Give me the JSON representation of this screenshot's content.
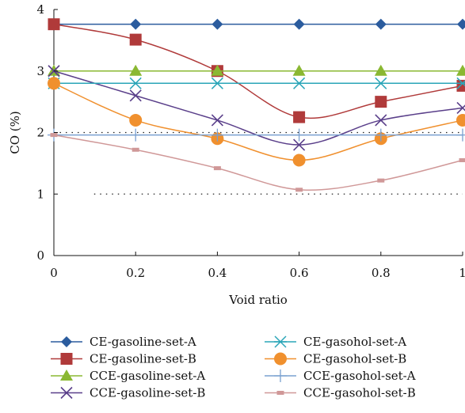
{
  "chart_data": {
    "type": "line",
    "xlabel": "Void ratio",
    "ylabel": "CO (%)",
    "xlim": [
      0,
      1
    ],
    "ylim": [
      0,
      4
    ],
    "x_ticks": [
      "0",
      "0.2",
      "0.4",
      "0.6",
      "0.8",
      "1"
    ],
    "y_ticks": [
      "0",
      "1",
      "2",
      "3",
      "4"
    ],
    "x": [
      0,
      0.2,
      0.4,
      0.6,
      0.8,
      1.0
    ],
    "reference_lines": [
      {
        "y": 2,
        "style": "dotted",
        "x_range": [
          0,
          1
        ]
      },
      {
        "y": 1,
        "style": "dotted",
        "x_range": [
          0.05,
          1
        ]
      }
    ],
    "legend_position": "bottom",
    "series": [
      {
        "name": "CE-gasoline-set-A",
        "color": "#2b5c9e",
        "marker": "diamond",
        "values": [
          3.76,
          3.76,
          3.76,
          3.76,
          3.76,
          3.76
        ]
      },
      {
        "name": "CE-gasoline-set-B",
        "color": "#b03a3a",
        "marker": "square",
        "values": [
          3.76,
          3.51,
          3.0,
          2.25,
          2.5,
          2.76
        ]
      },
      {
        "name": "CCE-gasoline-set-A",
        "color": "#8ab832",
        "marker": "triangle",
        "values": [
          3.0,
          3.0,
          3.0,
          3.0,
          3.0,
          3.0
        ]
      },
      {
        "name": "CCE-gasoline-set-B",
        "color": "#5a3f8a",
        "marker": "x",
        "values": [
          3.0,
          2.6,
          2.2,
          1.8,
          2.2,
          2.4
        ]
      },
      {
        "name": "CE-gasohol-set-A",
        "color": "#2aa5b8",
        "marker": "asterisk",
        "values": [
          2.8,
          2.8,
          2.8,
          2.8,
          2.8,
          2.8
        ]
      },
      {
        "name": "CE-gasohol-set-B",
        "color": "#f0902e",
        "marker": "circle",
        "values": [
          2.8,
          2.2,
          1.9,
          1.55,
          1.9,
          2.2
        ]
      },
      {
        "name": "CCE-gasohol-set-A",
        "color": "#7aa0d0",
        "marker": "plus",
        "values": [
          1.96,
          1.96,
          1.96,
          1.96,
          1.96,
          1.96
        ]
      },
      {
        "name": "CCE-gasohol-set-B",
        "color": "#d09898",
        "marker": "dash",
        "values": [
          1.96,
          1.72,
          1.42,
          1.07,
          1.22,
          1.55
        ]
      }
    ]
  }
}
